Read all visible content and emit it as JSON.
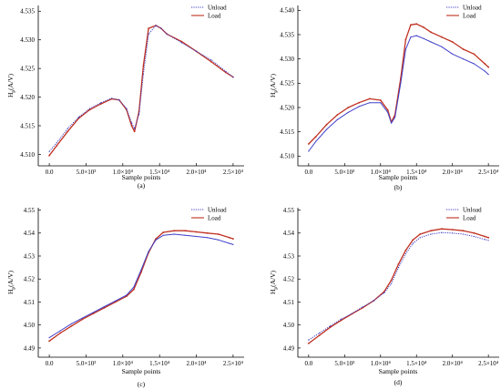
{
  "chart_data": [
    {
      "type": "line",
      "panel_label": "(a)",
      "xlabel": "Sample points",
      "ylabel_main": "H",
      "ylabel_sub": "p",
      "ylabel_rest": "(A/V)",
      "xlim": [
        -1500,
        26500
      ],
      "ylim": [
        4.508,
        4.536
      ],
      "yticks": [
        "4.510",
        "4.515",
        "4.520",
        "4.525",
        "4.530",
        "4.535"
      ],
      "ytick_values": [
        4.51,
        4.515,
        4.52,
        4.525,
        4.53,
        4.535
      ],
      "xticks": [
        "0.0",
        "5.0×10³",
        "1.0×10⁴",
        "1.5×10⁴",
        "2.0×10⁴",
        "2.5×10⁴"
      ],
      "xtick_values": [
        0,
        5000,
        10000,
        15000,
        20000,
        25000
      ],
      "legend_position": "top-right",
      "series": [
        {
          "name": "Unload",
          "color": "#4040c8",
          "style": "dotted",
          "x": [
            0,
            1000,
            2500,
            4000,
            5500,
            7000,
            8500,
            9500,
            10500,
            11200,
            11600,
            12200,
            12800,
            13500,
            14500,
            15200,
            16000,
            18000,
            20000,
            22000,
            24000,
            25000
          ],
          "y": [
            4.5105,
            4.512,
            4.5145,
            4.5165,
            4.518,
            4.519,
            4.5198,
            4.5195,
            4.518,
            4.5155,
            4.5145,
            4.517,
            4.524,
            4.531,
            4.5325,
            4.532,
            4.531,
            4.5295,
            4.528,
            4.5265,
            4.5245,
            4.5235
          ]
        },
        {
          "name": "Load",
          "color": "#c03020",
          "style": "solid",
          "x": [
            0,
            1000,
            2500,
            4000,
            5500,
            7000,
            8500,
            9500,
            10500,
            11200,
            11600,
            12200,
            12800,
            13500,
            14500,
            15200,
            16000,
            18000,
            20000,
            22000,
            24000,
            25000
          ],
          "y": [
            4.5098,
            4.5115,
            4.514,
            4.5163,
            4.5178,
            4.5188,
            4.5197,
            4.5195,
            4.5178,
            4.515,
            4.514,
            4.5175,
            4.5255,
            4.532,
            4.5325,
            4.532,
            4.531,
            4.5297,
            4.528,
            4.5262,
            4.5243,
            4.5235
          ]
        }
      ]
    },
    {
      "type": "line",
      "panel_label": "(b)",
      "xlabel": "Sample points",
      "ylabel_main": "H",
      "ylabel_sub": "p",
      "ylabel_rest": "(A/V)",
      "xlim": [
        -1500,
        26500
      ],
      "ylim": [
        4.508,
        4.541
      ],
      "yticks": [
        "4.510",
        "4.515",
        "4.520",
        "4.525",
        "4.530",
        "4.535",
        "4.540"
      ],
      "ytick_values": [
        4.51,
        4.515,
        4.52,
        4.525,
        4.53,
        4.535,
        4.54
      ],
      "xticks": [
        "0.0",
        "5.0×10³",
        "1.0×10⁴",
        "1.5×10⁴",
        "2.0×10⁴",
        "2.5×10⁴"
      ],
      "xtick_values": [
        0,
        5000,
        10000,
        15000,
        20000,
        25000
      ],
      "legend_position": "top-right",
      "series": [
        {
          "name": "Unload",
          "color": "#4040c8",
          "style": "solid",
          "x": [
            0,
            1000,
            2500,
            4000,
            5500,
            7000,
            8500,
            10000,
            11000,
            11500,
            12000,
            12800,
            13500,
            14200,
            15000,
            16000,
            17000,
            18500,
            20000,
            21500,
            23000,
            24500,
            25000
          ],
          "y": [
            4.511,
            4.513,
            4.5155,
            4.5175,
            4.519,
            4.5202,
            4.521,
            4.521,
            4.519,
            4.5168,
            4.518,
            4.525,
            4.532,
            4.5345,
            4.5348,
            4.5342,
            4.5335,
            4.5325,
            4.531,
            4.53,
            4.529,
            4.5275,
            4.5268
          ]
        },
        {
          "name": "Load",
          "color": "#c03020",
          "style": "solid",
          "x": [
            0,
            1000,
            2500,
            4000,
            5500,
            7000,
            8500,
            10000,
            11000,
            11500,
            12000,
            12800,
            13500,
            14200,
            15000,
            16000,
            17000,
            18500,
            20000,
            21500,
            23000,
            24500,
            25000
          ],
          "y": [
            4.5125,
            4.514,
            4.5165,
            4.5185,
            4.52,
            4.521,
            4.5218,
            4.5215,
            4.5195,
            4.517,
            4.5185,
            4.526,
            4.534,
            4.537,
            4.5372,
            4.5365,
            4.5355,
            4.5345,
            4.5335,
            4.532,
            4.531,
            4.529,
            4.5283
          ]
        }
      ]
    },
    {
      "type": "line",
      "panel_label": "(c)",
      "xlabel": "Sample points",
      "ylabel_main": "H",
      "ylabel_sub": "p",
      "ylabel_rest": "(A/V)",
      "xlim": [
        -1500,
        26500
      ],
      "ylim": [
        4.486,
        4.551
      ],
      "yticks": [
        "4.49",
        "4.50",
        "4.51",
        "4.52",
        "4.53",
        "4.54",
        "4.55"
      ],
      "ytick_values": [
        4.49,
        4.5,
        4.51,
        4.52,
        4.53,
        4.54,
        4.55
      ],
      "xticks": [
        "0.0",
        "5.0×10³",
        "1.0×10⁴",
        "1.5×10⁴",
        "2.0×10⁴",
        "2.5×10⁴"
      ],
      "xtick_values": [
        0,
        5000,
        10000,
        15000,
        20000,
        25000
      ],
      "legend_position": "top-right",
      "series": [
        {
          "name": "Unload",
          "color": "#4040c8",
          "style": "solid",
          "x": [
            0,
            1500,
            3000,
            4500,
            6000,
            7500,
            9000,
            10500,
            11500,
            12500,
            13500,
            14500,
            15500,
            17000,
            18500,
            20000,
            21500,
            23000,
            24500,
            25000
          ],
          "y": [
            4.4945,
            4.4975,
            4.5005,
            4.503,
            4.5055,
            4.508,
            4.5105,
            4.513,
            4.5165,
            4.524,
            4.532,
            4.537,
            4.539,
            4.5395,
            4.539,
            4.5385,
            4.538,
            4.537,
            4.5355,
            4.535
          ]
        },
        {
          "name": "Load",
          "color": "#c03020",
          "style": "solid",
          "x": [
            0,
            1500,
            3000,
            4500,
            6000,
            7500,
            9000,
            10500,
            11500,
            12500,
            13500,
            14500,
            15500,
            17000,
            18500,
            20000,
            21500,
            23000,
            24500,
            25000
          ],
          "y": [
            4.493,
            4.4965,
            4.4995,
            4.5025,
            4.505,
            4.5075,
            4.51,
            4.5125,
            4.5155,
            4.523,
            4.5315,
            4.5375,
            4.5403,
            4.541,
            4.541,
            4.5405,
            4.54,
            4.5395,
            4.538,
            4.5375
          ]
        }
      ]
    },
    {
      "type": "line",
      "panel_label": "(d)",
      "xlabel": "Sample points",
      "ylabel_main": "H",
      "ylabel_sub": "p",
      "ylabel_rest": "(A/V)",
      "xlim": [
        -1500,
        26500
      ],
      "ylim": [
        4.486,
        4.551
      ],
      "yticks": [
        "4.49",
        "4.50",
        "4.51",
        "4.52",
        "4.53",
        "4.54",
        "4.55"
      ],
      "ytick_values": [
        4.49,
        4.5,
        4.51,
        4.52,
        4.53,
        4.54,
        4.55
      ],
      "xticks": [
        "0.0",
        "5.0×10³",
        "1.0×10⁴",
        "1.5×10⁴",
        "2.0×10⁴",
        "2.5×10⁴"
      ],
      "xtick_values": [
        0,
        5000,
        10000,
        15000,
        20000,
        25000
      ],
      "legend_position": "top-right",
      "series": [
        {
          "name": "Unload",
          "color": "#4040c8",
          "style": "dotted",
          "x": [
            0,
            1500,
            3000,
            4500,
            6000,
            7500,
            9000,
            10500,
            11500,
            12500,
            13500,
            14500,
            15500,
            17000,
            18500,
            20000,
            21500,
            23000,
            24500,
            25000
          ],
          "y": [
            4.4935,
            4.4965,
            4.4995,
            4.5025,
            4.505,
            4.5078,
            4.5105,
            4.514,
            4.518,
            4.525,
            4.531,
            4.5355,
            4.538,
            4.5395,
            4.5402,
            4.54,
            4.5395,
            4.5385,
            4.5372,
            4.5368
          ]
        },
        {
          "name": "Load",
          "color": "#c03020",
          "style": "solid",
          "x": [
            0,
            1500,
            3000,
            4500,
            6000,
            7500,
            9000,
            10500,
            11500,
            12500,
            13500,
            14500,
            15500,
            17000,
            18500,
            20000,
            21500,
            23000,
            24500,
            25000
          ],
          "y": [
            4.492,
            4.4955,
            4.499,
            4.502,
            4.5048,
            4.5075,
            4.5105,
            4.5145,
            4.5195,
            4.5265,
            4.5325,
            4.537,
            4.5395,
            4.541,
            4.5418,
            4.5415,
            4.541,
            4.54,
            4.5385,
            4.538
          ]
        }
      ]
    }
  ]
}
